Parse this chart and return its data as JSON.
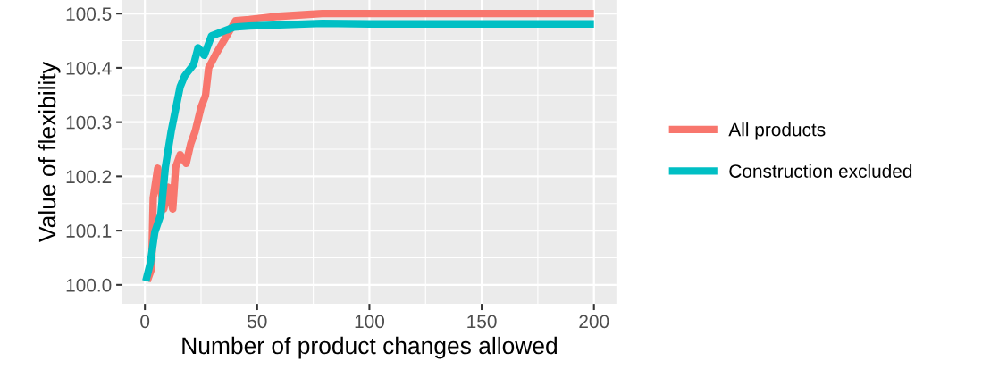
{
  "chart_data": {
    "type": "line",
    "xlabel": "Number of product changes allowed",
    "ylabel": "Value of flexibility",
    "xlim": [
      -10,
      210
    ],
    "xticks": [
      0,
      50,
      100,
      150,
      200
    ],
    "ylim": [
      99.965,
      100.525
    ],
    "yticks": [
      {
        "value": 100.0,
        "label": "100.0"
      },
      {
        "value": 100.1,
        "label": "100.1"
      },
      {
        "value": 100.2,
        "label": "100.2"
      },
      {
        "value": 100.3,
        "label": "100.3"
      },
      {
        "value": 100.4,
        "label": "100.4"
      },
      {
        "value": 100.5,
        "label": "100.5"
      }
    ],
    "grid": true,
    "legend": "right",
    "line_style": "solid",
    "marker": "none",
    "series": [
      {
        "name": "All products",
        "color": "#f8766d",
        "x": [
          1,
          3,
          3.7,
          5.7,
          8.4,
          10.4,
          12.4,
          13.7,
          15.7,
          18.4,
          20.4,
          22.4,
          25,
          27,
          28.4,
          31.7,
          35.7,
          40.4,
          46.4,
          59.6,
          79,
          100,
          150,
          200
        ],
        "values": [
          100.007,
          100.03,
          100.16,
          100.215,
          100.14,
          100.18,
          100.14,
          100.217,
          100.24,
          100.224,
          100.26,
          100.283,
          100.327,
          100.349,
          100.4,
          100.426,
          100.454,
          100.487,
          100.489,
          100.495,
          100.5,
          100.5,
          100.5,
          100.5
        ]
      },
      {
        "name": "Construction excluded",
        "color": "#00bfc4",
        "x": [
          0.4,
          2.4,
          4.4,
          7.1,
          9.1,
          11.7,
          15.7,
          17.7,
          21.7,
          23.7,
          26.4,
          29.7,
          39.7,
          46.4,
          79,
          100,
          150,
          200
        ],
        "values": [
          100.007,
          100.04,
          100.097,
          100.13,
          100.217,
          100.283,
          100.365,
          100.385,
          100.406,
          100.437,
          100.423,
          100.459,
          100.475,
          100.477,
          100.482,
          100.481,
          100.481,
          100.481
        ]
      }
    ]
  }
}
